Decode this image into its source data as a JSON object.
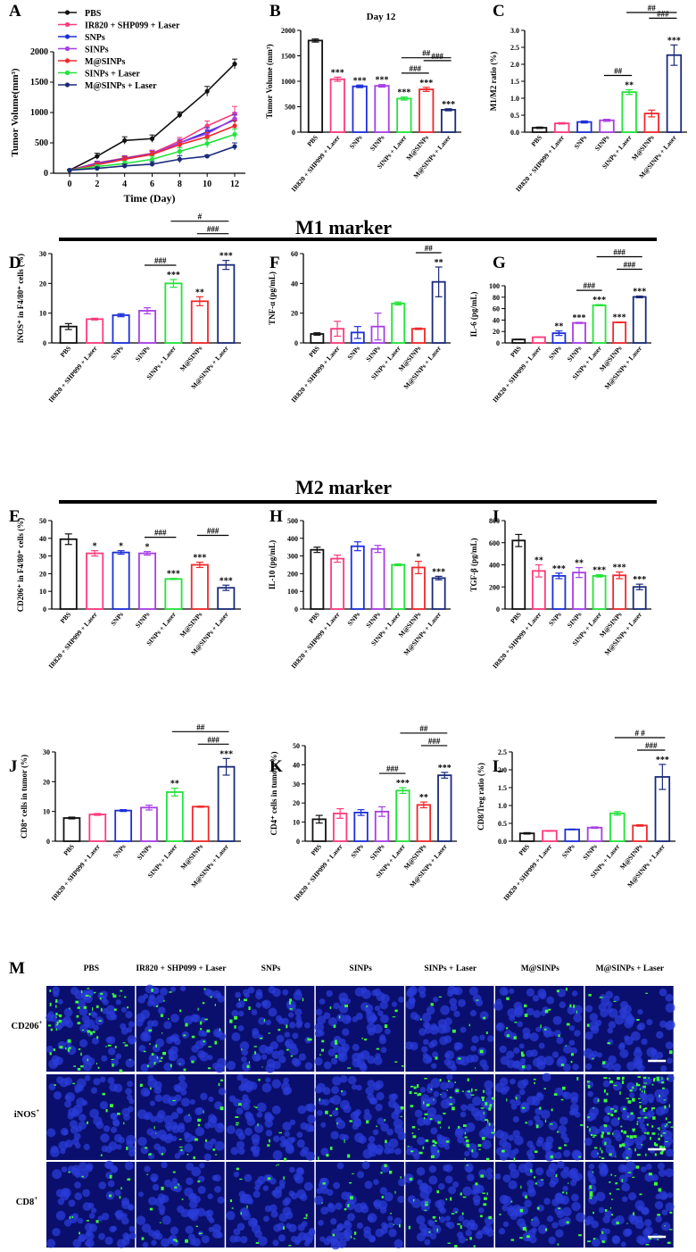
{
  "groups": [
    "PBS",
    "IR820 + SHP099 + Laser",
    "SNPs",
    "SINPs",
    "SINPs + Laser",
    "M@SINPs",
    "M@SINPs + Laser"
  ],
  "colors": [
    "#111111",
    "#ff3b7a",
    "#1c2fd9",
    "#a83ee6",
    "#22e33a",
    "#f0282a",
    "#1a2a7a"
  ],
  "section_titles": {
    "m1": "M1 marker",
    "m2": "M2 marker"
  },
  "chart_data": [
    {
      "id": "A",
      "type": "line",
      "panel_letter": "A",
      "title": "",
      "xlabel": "Time (Day)",
      "ylabel": "Tumor Volume(mm³)",
      "x": [
        0,
        2,
        4,
        6,
        8,
        10,
        12
      ],
      "xticks": [
        "0",
        "2",
        "4",
        "6",
        "8",
        "10",
        "12"
      ],
      "ylim": [
        0,
        2000
      ],
      "yticks": [
        "0",
        "500",
        "1000",
        "1500",
        "2000"
      ],
      "legend": [
        "PBS",
        "IR820 + SHP099 + Laser",
        "SNPs",
        "SINPs",
        "M@SINPs",
        "SINPs + Laser",
        "M@SINPs + Laser"
      ],
      "series": [
        {
          "name": "PBS",
          "color": "#111111",
          "values": [
            50,
            280,
            540,
            570,
            960,
            1350,
            1800
          ],
          "errors": [
            10,
            50,
            60,
            60,
            50,
            80,
            80
          ]
        },
        {
          "name": "IR820 + SHP099 + Laser",
          "color": "#ff3b7a",
          "values": [
            50,
            170,
            250,
            330,
            530,
            780,
            980
          ],
          "errors": [
            10,
            30,
            40,
            50,
            60,
            80,
            120
          ]
        },
        {
          "name": "SNPs",
          "color": "#1c2fd9",
          "values": [
            50,
            160,
            240,
            320,
            500,
            680,
            880
          ],
          "errors": [
            10,
            30,
            40,
            50,
            60,
            70,
            80
          ]
        },
        {
          "name": "SINPs",
          "color": "#a83ee6",
          "values": [
            50,
            150,
            230,
            320,
            500,
            650,
            900
          ],
          "errors": [
            10,
            30,
            40,
            50,
            60,
            70,
            100
          ]
        },
        {
          "name": "M@SINPs",
          "color": "#f0282a",
          "values": [
            50,
            140,
            230,
            310,
            470,
            600,
            780
          ],
          "errors": [
            10,
            30,
            40,
            50,
            60,
            70,
            90
          ]
        },
        {
          "name": "SINPs + Laser",
          "color": "#22e33a",
          "values": [
            50,
            110,
            160,
            230,
            360,
            490,
            640
          ],
          "errors": [
            10,
            30,
            40,
            50,
            60,
            70,
            90
          ]
        },
        {
          "name": "M@SINPs + Laser",
          "color": "#1a2a7a",
          "values": [
            50,
            80,
            120,
            150,
            230,
            280,
            440
          ],
          "errors": [
            10,
            20,
            30,
            40,
            60,
            20,
            60
          ]
        }
      ]
    },
    {
      "id": "B",
      "type": "bar",
      "panel_letter": "B",
      "title": "Day 12",
      "ylabel": "Tumor Volume (mm³)",
      "ylim": [
        0,
        2000
      ],
      "yticks": [
        "0",
        "500",
        "1000",
        "1500",
        "2000"
      ],
      "values": [
        1800,
        1040,
        900,
        910,
        660,
        840,
        440
      ],
      "errors": [
        30,
        40,
        25,
        25,
        30,
        40,
        20
      ],
      "stars": [
        "",
        "***",
        "***",
        "***",
        "***",
        "***",
        "***"
      ],
      "hashes": [
        [
          "SINPs + Laser",
          "M@SINPs",
          "###"
        ],
        [
          "M@SINPs",
          "M@SINPs + Laser",
          "###"
        ],
        [
          "SINPs + Laser",
          "M@SINPs + Laser",
          "##"
        ]
      ]
    },
    {
      "id": "C",
      "type": "bar",
      "panel_letter": "C",
      "ylabel": "M1/M2 ratio  (%)",
      "ylim": [
        0,
        3
      ],
      "yticks": [
        "0.0",
        "0.5",
        "1.0",
        "1.5",
        "2.0",
        "2.5",
        "3.0"
      ],
      "values": [
        0.13,
        0.26,
        0.3,
        0.35,
        1.18,
        0.55,
        2.27
      ],
      "errors": [
        0.02,
        0.02,
        0.03,
        0.03,
        0.07,
        0.1,
        0.3
      ],
      "stars": [
        "",
        "",
        "",
        "",
        "**",
        "",
        "***"
      ],
      "hashes": [
        [
          "SINPs",
          "SINPs + Laser",
          "##"
        ],
        [
          "M@SINPs",
          "M@SINPs + Laser",
          "###"
        ],
        [
          "SINPs + Laser",
          "M@SINPs + Laser",
          "##"
        ]
      ]
    },
    {
      "id": "D",
      "type": "bar",
      "panel_letter": "D",
      "ylabel": "iNOS⁺ in F4/80⁺ cells  (%)",
      "ylim": [
        0,
        30
      ],
      "yticks": [
        "0",
        "10",
        "20",
        "30"
      ],
      "values": [
        5.5,
        8,
        9.3,
        10.8,
        20,
        14,
        26.2
      ],
      "errors": [
        1,
        0.3,
        0.5,
        1,
        1.3,
        1.5,
        1.5
      ],
      "stars": [
        "",
        "",
        "",
        "",
        "***",
        "**",
        "***"
      ],
      "hashes": [
        [
          "SINPs",
          "SINPs + Laser",
          "###"
        ],
        [
          "M@SINPs",
          "M@SINPs + Laser",
          "###"
        ],
        [
          "SINPs + Laser",
          "M@SINPs + Laser",
          "#"
        ]
      ]
    },
    {
      "id": "F",
      "type": "bar",
      "panel_letter": "F",
      "ylabel": "TNF-α  (pg/mL)",
      "ylim": [
        0,
        60
      ],
      "yticks": [
        "0",
        "20",
        "40",
        "60"
      ],
      "values": [
        6,
        9.5,
        7,
        11,
        26.5,
        9.5,
        41
      ],
      "errors": [
        0.8,
        5,
        4,
        9,
        1,
        0.5,
        10
      ],
      "stars": [
        "",
        "",
        "",
        "",
        "",
        "",
        "**"
      ],
      "hashes": [
        [
          "M@SINPs",
          "M@SINPs + Laser",
          "##"
        ]
      ]
    },
    {
      "id": "G",
      "type": "bar",
      "panel_letter": "G",
      "ylabel": "IL-6  (pg/mL)",
      "ylim": [
        0,
        100
      ],
      "yticks": [
        "0",
        "20",
        "40",
        "60",
        "80",
        "100"
      ],
      "values": [
        6,
        10,
        17,
        35,
        66,
        36,
        80.5
      ],
      "errors": [
        0.5,
        0.5,
        4,
        1,
        1,
        0.5,
        1.5
      ],
      "stars": [
        "",
        "",
        "**",
        "***",
        "***",
        "***",
        "***"
      ],
      "hashes": [
        [
          "SINPs",
          "SINPs + Laser",
          "###"
        ],
        [
          "M@SINPs",
          "M@SINPs + Laser",
          "###"
        ],
        [
          "SINPs + Laser",
          "M@SINPs + Laser",
          "###"
        ]
      ]
    },
    {
      "id": "E",
      "type": "bar",
      "panel_letter": "E",
      "ylabel": "CD206⁺ in F4/80⁺ cells  (%)",
      "ylim": [
        0,
        50
      ],
      "yticks": [
        "0",
        "10",
        "20",
        "30",
        "40",
        "50"
      ],
      "values": [
        39.5,
        31.5,
        32,
        31.5,
        17,
        25,
        12
      ],
      "errors": [
        3,
        1.5,
        1,
        1,
        0.3,
        1.5,
        1.5
      ],
      "stars": [
        "",
        "*",
        "*",
        "*",
        "***",
        "***",
        "***"
      ],
      "hashes": [
        [
          "SINPs",
          "SINPs + Laser",
          "###"
        ],
        [
          "M@SINPs",
          "M@SINPs + Laser",
          "###"
        ]
      ]
    },
    {
      "id": "H",
      "type": "bar",
      "panel_letter": "H",
      "ylabel": "IL-10  (pg/mL)",
      "ylim": [
        0,
        500
      ],
      "yticks": [
        "0",
        "100",
        "200",
        "300",
        "400",
        "500"
      ],
      "values": [
        335,
        285,
        355,
        340,
        250,
        235,
        175
      ],
      "errors": [
        15,
        20,
        25,
        20,
        5,
        35,
        10
      ],
      "stars": [
        "",
        "",
        "",
        "",
        "",
        "*",
        "***"
      ],
      "hashes": []
    },
    {
      "id": "I",
      "type": "bar",
      "panel_letter": "I",
      "ylabel": "TGF-β  (pg/mL)",
      "ylim": [
        0,
        800
      ],
      "yticks": [
        "0",
        "200",
        "400",
        "600",
        "800"
      ],
      "values": [
        620,
        345,
        300,
        330,
        300,
        305,
        200
      ],
      "errors": [
        55,
        55,
        25,
        45,
        10,
        30,
        25
      ],
      "stars": [
        "",
        "**",
        "***",
        "**",
        "***",
        "***",
        "***"
      ],
      "hashes": []
    },
    {
      "id": "J",
      "type": "bar",
      "panel_letter": "J",
      "ylabel": "CD8⁺ cells in tumor  (%)",
      "ylim": [
        0,
        30
      ],
      "yticks": [
        "0",
        "10",
        "20",
        "30"
      ],
      "values": [
        7.8,
        9,
        10.3,
        11.3,
        16.5,
        11.6,
        25
      ],
      "errors": [
        0.3,
        0.3,
        0.3,
        0.8,
        1.3,
        0.2,
        2.8
      ],
      "stars": [
        "",
        "",
        "",
        "",
        "**",
        "",
        "***"
      ],
      "hashes": [
        [
          "M@SINPs",
          "M@SINPs + Laser",
          "###"
        ],
        [
          "SINPs + Laser",
          "M@SINPs + Laser",
          "##"
        ]
      ]
    },
    {
      "id": "K",
      "type": "bar",
      "panel_letter": "K",
      "ylabel": "CD4⁺ cells in tumor  (%)",
      "ylim": [
        0,
        50
      ],
      "yticks": [
        "0",
        "10",
        "20",
        "30",
        "40",
        "50"
      ],
      "values": [
        11.5,
        14.5,
        15,
        15.5,
        26.5,
        19,
        34.5
      ],
      "errors": [
        2,
        2.5,
        1.5,
        2.5,
        1.5,
        1.5,
        1.5
      ],
      "stars": [
        "",
        "",
        "",
        "",
        "***",
        "**",
        "***"
      ],
      "hashes": [
        [
          "SINPs",
          "SINPs + Laser",
          "###"
        ],
        [
          "M@SINPs",
          "M@SINPs + Laser",
          "###"
        ],
        [
          "SINPs + Laser",
          "M@SINPs + Laser",
          "##"
        ]
      ]
    },
    {
      "id": "L",
      "type": "bar",
      "panel_letter": "L",
      "ylabel": "CD8/Treg ratio  (%)",
      "ylim": [
        0,
        2.5
      ],
      "yticks": [
        "0.0",
        "0.5",
        "1.0",
        "1.5",
        "2.0",
        "2.5"
      ],
      "values": [
        0.22,
        0.29,
        0.33,
        0.38,
        0.78,
        0.44,
        1.8
      ],
      "errors": [
        0.02,
        0.01,
        0.01,
        0.02,
        0.05,
        0.02,
        0.35
      ],
      "stars": [
        "",
        "",
        "",
        "",
        "",
        "",
        "***"
      ],
      "hashes": [
        [
          "M@SINPs",
          "M@SINPs + Laser",
          "###"
        ],
        [
          "SINPs + Laser",
          "M@SINPs + Laser",
          "# #"
        ]
      ]
    }
  ],
  "micrographs": {
    "panel_letter": "M",
    "columns": [
      "PBS",
      "IR820 + SHP099 + Laser",
      "SNPs",
      "SINPs",
      "SINPs + Laser",
      "M@SINPs",
      "M@SINPs + Laser"
    ],
    "rows": [
      {
        "base": "CD206",
        "sup": "+",
        "green_density": [
          70,
          40,
          25,
          20,
          12,
          25,
          10
        ]
      },
      {
        "base": "iNOS",
        "sup": "+",
        "green_density": [
          10,
          25,
          12,
          18,
          80,
          25,
          130
        ]
      },
      {
        "base": "CD8",
        "sup": "+",
        "green_density": [
          12,
          15,
          15,
          20,
          35,
          25,
          40
        ]
      }
    ]
  }
}
